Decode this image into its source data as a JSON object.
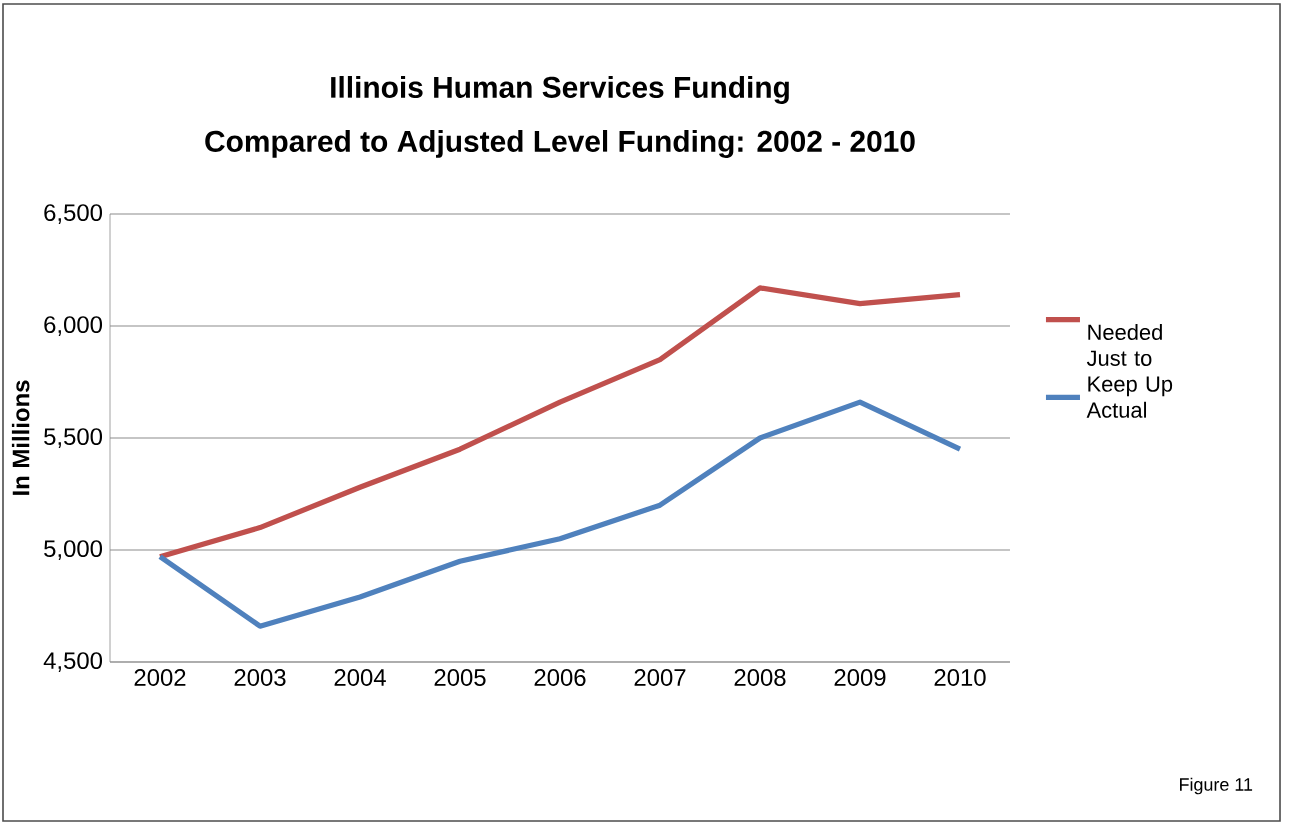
{
  "chart_data": {
    "type": "line",
    "title": "Illinois Human Services Funding",
    "subtitle": "Compared to Adjusted Level Funding: 2002 - 2010",
    "ylabel": "In Millions",
    "categories": [
      "2002",
      "2003",
      "2004",
      "2005",
      "2006",
      "2007",
      "2008",
      "2009",
      "2010"
    ],
    "series": [
      {
        "name": "Needed Just to Keep Up",
        "color": "#c0504d",
        "values": [
          4970,
          5100,
          5280,
          5450,
          5660,
          5850,
          6170,
          6100,
          6140
        ]
      },
      {
        "name": "Actual",
        "color": "#4f81bd",
        "values": [
          4970,
          4660,
          4790,
          4950,
          5050,
          5200,
          5500,
          5660,
          5450
        ]
      }
    ],
    "ylim": [
      4500,
      6500
    ],
    "yticks": [
      {
        "value": 4500,
        "label": "4,500"
      },
      {
        "value": 5000,
        "label": "5,000"
      },
      {
        "value": 5500,
        "label": "5,500"
      },
      {
        "value": 6000,
        "label": "6,000"
      },
      {
        "value": 6500,
        "label": "6,500"
      }
    ],
    "grid": "y",
    "legend": "right",
    "annotations": [
      "Figure 11"
    ]
  }
}
